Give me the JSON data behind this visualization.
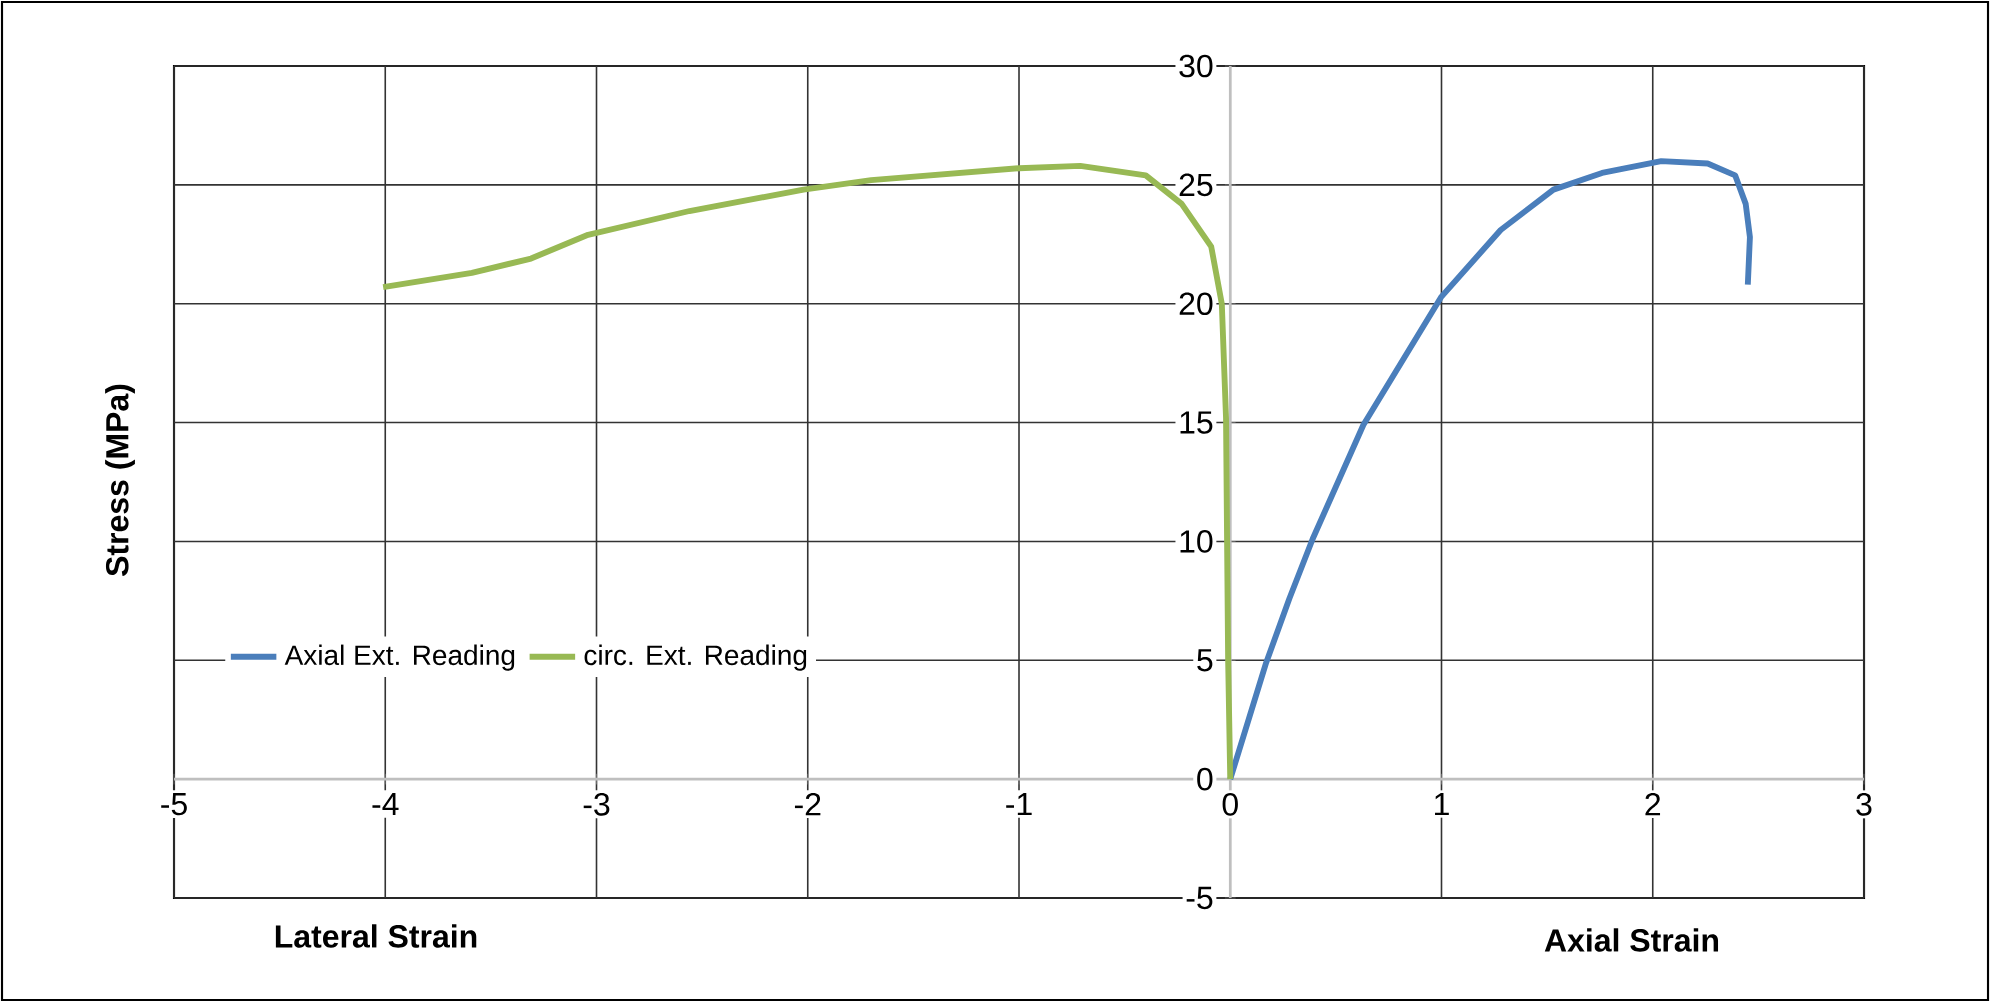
{
  "chart_data": {
    "type": "line",
    "ylabel": "Stress (MPa)",
    "xlabel": "Lateral Strain",
    "annotations": [
      "Axial Strain"
    ],
    "xlim": [
      -5,
      3
    ],
    "ylim": [
      -5,
      30
    ],
    "xticks": [
      -5,
      -4,
      -3,
      -2,
      -1,
      0,
      1,
      2,
      3
    ],
    "yticks": [
      -5,
      0,
      5,
      10,
      15,
      20,
      25,
      30
    ],
    "grid": true,
    "legend": "left",
    "series": [
      {
        "name": "Axial Ext. Reading",
        "color": "#4a7ebb",
        "x": [
          0,
          0.17,
          0.28,
          0.39,
          0.63,
          1.0,
          1.28,
          1.53,
          1.76,
          2.04,
          2.26,
          2.39,
          2.44,
          2.46,
          2.45
        ],
        "values": [
          0,
          4.9,
          7.6,
          10.1,
          14.9,
          20.3,
          23.1,
          24.8,
          25.5,
          26.0,
          25.9,
          25.4,
          24.2,
          22.8,
          20.8
        ]
      },
      {
        "name": "circ. Ext. Reading",
        "color": "#98b954",
        "x": [
          -4.01,
          -3.59,
          -3.31,
          -3.04,
          -2.56,
          -2.02,
          -1.7,
          -1.0,
          -0.71,
          -0.4,
          -0.23,
          -0.09,
          -0.04,
          -0.02,
          -0.015,
          -0.01,
          0
        ],
        "values": [
          20.7,
          21.3,
          21.9,
          22.9,
          23.9,
          24.8,
          25.2,
          25.7,
          25.8,
          25.4,
          24.2,
          22.4,
          20.0,
          15.2,
          10,
          5,
          0
        ]
      }
    ]
  }
}
